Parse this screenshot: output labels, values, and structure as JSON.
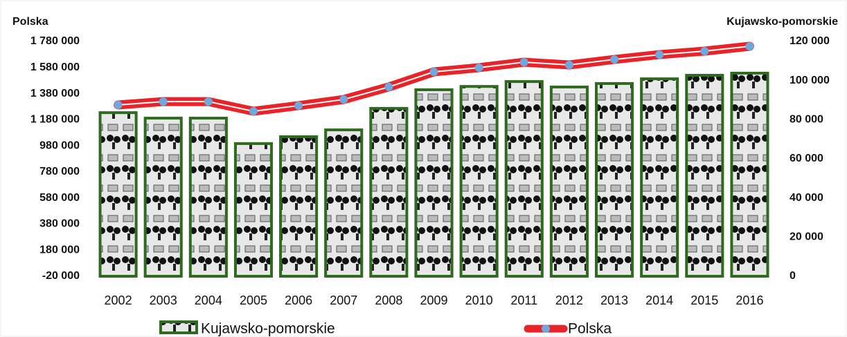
{
  "chart_data": {
    "type": "combo",
    "y_label": "Polska",
    "y2_label": "Kujawsko-pomorskie",
    "categories": [
      "2002",
      "2003",
      "2004",
      "2005",
      "2006",
      "2007",
      "2008",
      "2009",
      "2010",
      "2011",
      "2012",
      "2013",
      "2014",
      "2015",
      "2016"
    ],
    "series": [
      {
        "name": "Kujawsko-pomorskie",
        "type": "bar",
        "axis": "y2",
        "color": "#2e6b1e",
        "values": [
          83600,
          80800,
          80800,
          67800,
          71300,
          74800,
          85800,
          95300,
          97000,
          99500,
          96700,
          98500,
          100900,
          102700,
          103800
        ]
      },
      {
        "name": "Polska",
        "type": "line",
        "axis": "y",
        "color": "#e8242a",
        "marker_color": "#6fa8dc",
        "values": [
          1293000,
          1319000,
          1319000,
          1245000,
          1288000,
          1335000,
          1431000,
          1547000,
          1579000,
          1621000,
          1600000,
          1642000,
          1679000,
          1706000,
          1743000
        ]
      }
    ],
    "ylim": [
      -20000,
      1780000
    ],
    "yticks": [
      {
        "value": -20000,
        "label": "-20 000"
      },
      {
        "value": 180000,
        "label": "180 000"
      },
      {
        "value": 380000,
        "label": "380 000"
      },
      {
        "value": 580000,
        "label": "580 000"
      },
      {
        "value": 780000,
        "label": "780 000"
      },
      {
        "value": 980000,
        "label": "980 000"
      },
      {
        "value": 1180000,
        "label": "1 180 000"
      },
      {
        "value": 1380000,
        "label": "1 380 000"
      },
      {
        "value": 1580000,
        "label": "1 580 000"
      },
      {
        "value": 1780000,
        "label": "1 780 000"
      }
    ],
    "y2lim": [
      0,
      120000
    ],
    "y2ticks": [
      0,
      {
        "value": 20000,
        "label": "20 000"
      },
      {
        "value": 40000,
        "label": "40 000"
      },
      {
        "value": 60000,
        "label": "60 000"
      },
      {
        "value": 80000,
        "label": "80 000"
      },
      {
        "value": 100000,
        "label": "100 000"
      },
      {
        "value": 120000,
        "label": "120 000"
      }
    ],
    "grid": false
  }
}
